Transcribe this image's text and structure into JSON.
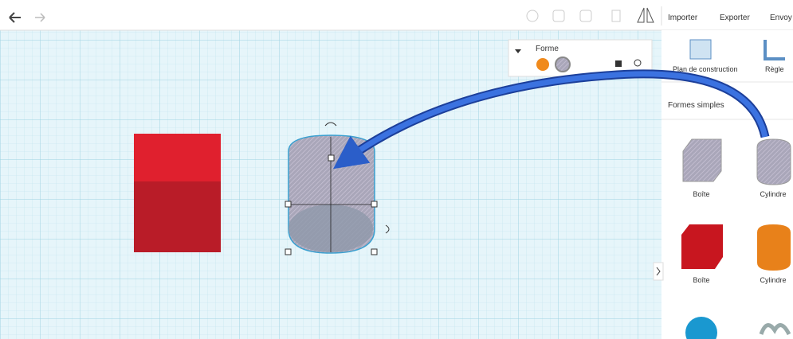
{
  "toolbar": {
    "buttons": [
      "Importer",
      "Exporter",
      "Envoy"
    ]
  },
  "shape_panel": {
    "title": "Forme"
  },
  "sidebar": {
    "tools": [
      "Plan de construction",
      "Règle"
    ],
    "section": "Formes simples",
    "shapes": [
      "Boîte",
      "Cylindre",
      "Boîte",
      "Cylindre"
    ]
  }
}
